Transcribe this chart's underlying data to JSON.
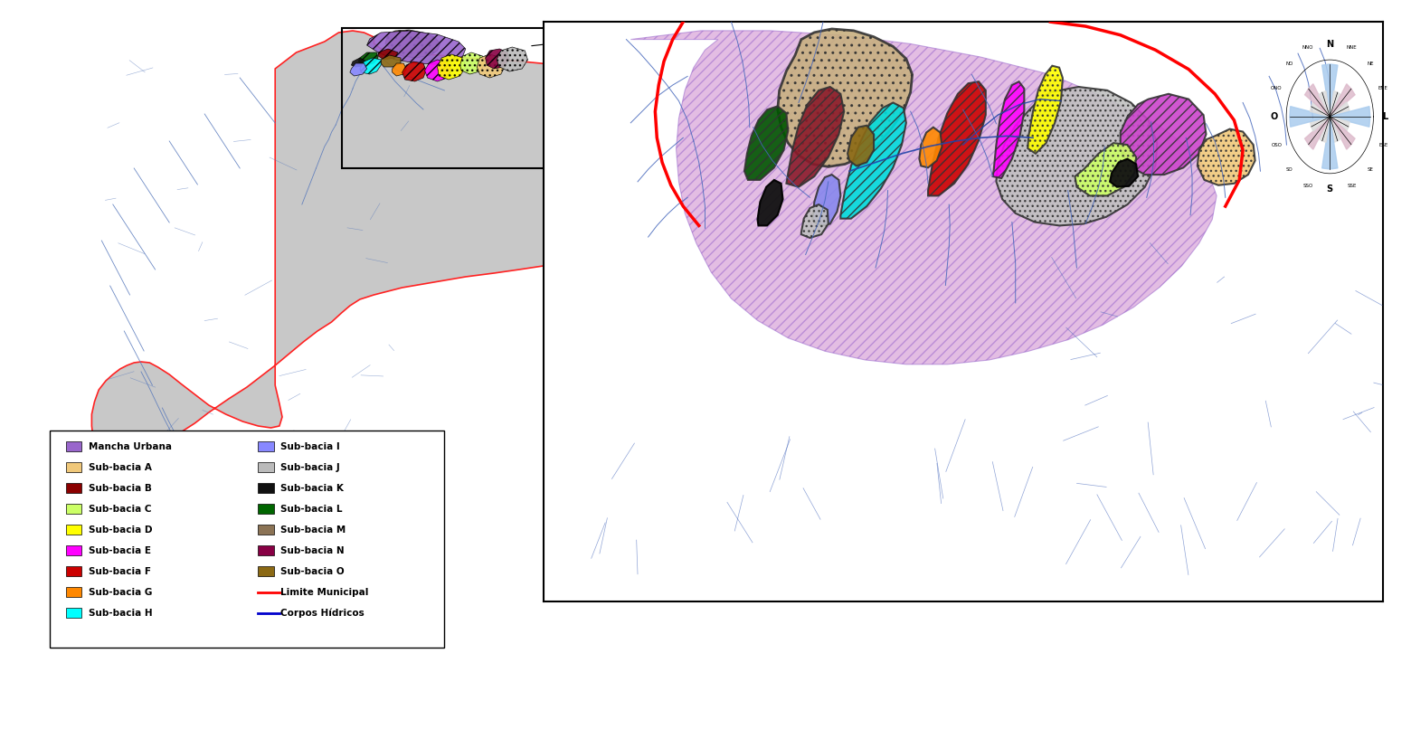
{
  "background_color": "#ffffff",
  "legend_items": [
    {
      "label": "Mancha Urbana",
      "color": "#9966cc"
    },
    {
      "label": "Sub-bacia A",
      "color": "#f0c87a"
    },
    {
      "label": "Sub-bacia B",
      "color": "#8b0000"
    },
    {
      "label": "Sub-bacia C",
      "color": "#ccff66"
    },
    {
      "label": "Sub-bacia D",
      "color": "#ffff00"
    },
    {
      "label": "Sub-bacia E",
      "color": "#ff00ff"
    },
    {
      "label": "Sub-bacia F",
      "color": "#cc0000"
    },
    {
      "label": "Sub-bacia G",
      "color": "#ff8800"
    },
    {
      "label": "Sub-bacia H",
      "color": "#00ffff"
    },
    {
      "label": "Sub-bacia I",
      "color": "#8888ff"
    },
    {
      "label": "Sub-bacia J",
      "color": "#bbbbbb"
    },
    {
      "label": "Sub-bacia K",
      "color": "#111111"
    },
    {
      "label": "Sub-bacia L",
      "color": "#006600"
    },
    {
      "label": "Sub-bacia M",
      "color": "#8b7355"
    },
    {
      "label": "Sub-bacia N",
      "color": "#880044"
    },
    {
      "label": "Sub-bacia O",
      "color": "#8b6914"
    }
  ],
  "line_items": [
    {
      "label": "Limite Municipal",
      "color": "#ff0000",
      "lw": 2.5
    },
    {
      "label": "Corpos Hídricos",
      "color": "#0000cc",
      "lw": 1.5
    }
  ],
  "map_bg_color": "#c8c8c8",
  "river_color": "#5577bb",
  "border_color": "#ff2222"
}
